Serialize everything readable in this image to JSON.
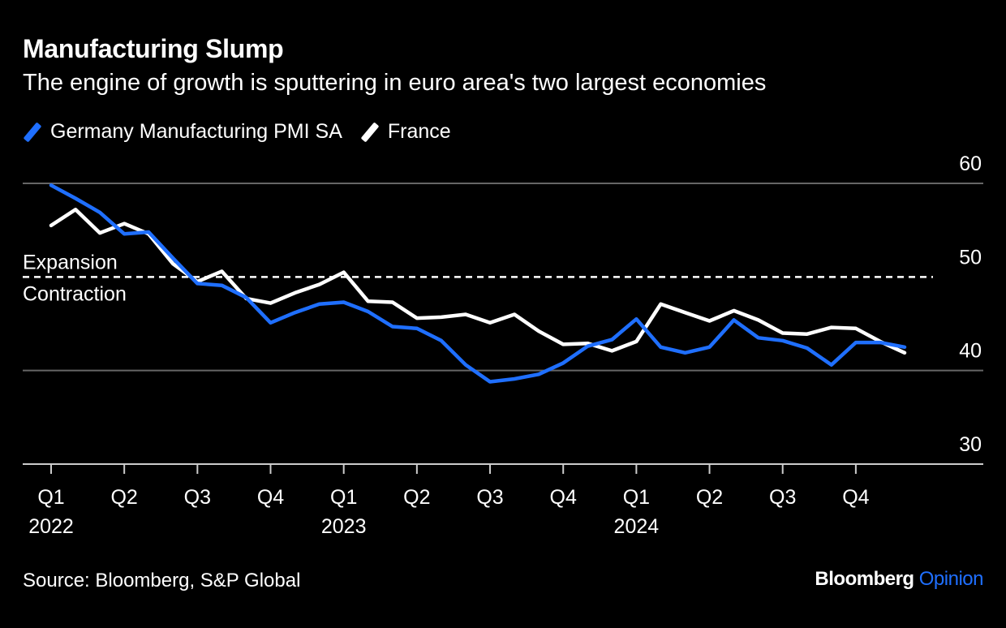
{
  "header": {
    "title": "Manufacturing Slump",
    "subtitle": "The engine of growth is sputtering in euro area's two largest economies"
  },
  "footer": {
    "source": "Source: Bloomberg, S&P Global",
    "brand_main": "Bloomberg",
    "brand_accent": "Opinion"
  },
  "colors": {
    "background": "#000000",
    "germany": "#1f6fff",
    "france": "#ffffff",
    "grid": "#666666"
  },
  "chart_data": {
    "type": "line",
    "title": "Manufacturing Slump",
    "subtitle": "The engine of growth is sputtering in euro area's two largest economies",
    "x": [
      "2022-01",
      "2022-02",
      "2022-03",
      "2022-04",
      "2022-05",
      "2022-06",
      "2022-07",
      "2022-08",
      "2022-09",
      "2022-10",
      "2022-11",
      "2022-12",
      "2023-01",
      "2023-02",
      "2023-03",
      "2023-04",
      "2023-05",
      "2023-06",
      "2023-07",
      "2023-08",
      "2023-09",
      "2023-10",
      "2023-11",
      "2023-12",
      "2024-01",
      "2024-02",
      "2024-03",
      "2024-04",
      "2024-05",
      "2024-06",
      "2024-07",
      "2024-08",
      "2024-09",
      "2024-10",
      "2024-11",
      "2024-12"
    ],
    "series": [
      {
        "name": "Germany Manufacturing PMI SA",
        "color": "#1f6fff",
        "values": [
          59.8,
          58.4,
          56.9,
          54.6,
          54.8,
          52.0,
          49.3,
          49.1,
          47.8,
          45.1,
          46.2,
          47.1,
          47.3,
          46.3,
          44.7,
          44.5,
          43.2,
          40.6,
          38.8,
          39.1,
          39.6,
          40.8,
          42.6,
          43.3,
          45.5,
          42.5,
          41.9,
          42.5,
          45.4,
          43.5,
          43.2,
          42.4,
          40.6,
          43.0,
          43.0,
          42.5
        ]
      },
      {
        "name": "France",
        "color": "#ffffff",
        "values": [
          55.5,
          57.2,
          54.7,
          55.7,
          54.6,
          51.4,
          49.5,
          50.6,
          47.7,
          47.2,
          48.3,
          49.2,
          50.5,
          47.4,
          47.3,
          45.6,
          45.7,
          46.0,
          45.1,
          46.0,
          44.2,
          42.8,
          42.9,
          42.1,
          43.1,
          47.1,
          46.2,
          45.3,
          46.4,
          45.4,
          44.0,
          43.9,
          44.6,
          44.5,
          43.1,
          41.9
        ]
      }
    ],
    "ylim": [
      30,
      60
    ],
    "yticks": [
      30,
      40,
      50,
      60
    ],
    "y_tick_labels": [
      "30",
      "40",
      "50",
      "60"
    ],
    "y_axis_side": "right",
    "x_tick_dates": [
      "2022-01",
      "2022-04",
      "2022-07",
      "2022-10",
      "2023-01",
      "2023-04",
      "2023-07",
      "2023-10",
      "2024-01",
      "2024-04",
      "2024-07",
      "2024-10"
    ],
    "x_tick_labels": [
      "Q1",
      "Q2",
      "Q3",
      "Q4",
      "Q1",
      "Q2",
      "Q3",
      "Q4",
      "Q1",
      "Q2",
      "Q3",
      "Q4"
    ],
    "x_year_labels": [
      {
        "at": "2022-01",
        "label": "2022"
      },
      {
        "at": "2023-01",
        "label": "2023"
      },
      {
        "at": "2024-01",
        "label": "2024"
      }
    ],
    "reference_line": {
      "value": 50,
      "style": "dashed",
      "label_above": "Expansion",
      "label_below": "Contraction"
    },
    "legend_position": "top-left",
    "grid": true
  }
}
